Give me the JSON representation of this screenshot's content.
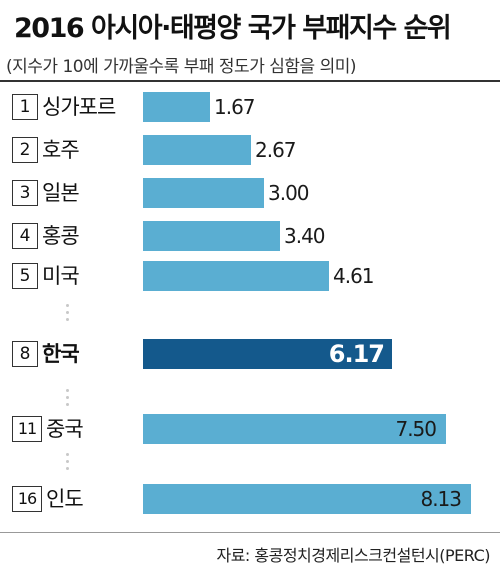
{
  "title": "2016 아시아·태평양 국가 부패지수 순위",
  "subtitle": "(지수가 10에 가까울수록 부패 정도가 심함을 의미)",
  "source": "자료: 홍콩정치경제리스크컨설턴시(PERC)",
  "colors": {
    "bar": "#5aaed2",
    "highlight": "#14598c"
  },
  "chart_data": {
    "type": "bar",
    "orientation": "horizontal",
    "xlim": [
      0,
      10
    ],
    "categories": [
      "1 싱가포르",
      "2 호주",
      "3 일본",
      "4 홍콩",
      "5 미국",
      "8 한국",
      "11 중국",
      "16 인도"
    ],
    "rows": [
      {
        "rank": "1",
        "name": "싱가포르",
        "value": 1.67,
        "label": "1.67"
      },
      {
        "rank": "2",
        "name": "호주",
        "value": 2.67,
        "label": "2.67"
      },
      {
        "rank": "3",
        "name": "일본",
        "value": 3.0,
        "label": "3.00"
      },
      {
        "rank": "4",
        "name": "홍콩",
        "value": 3.4,
        "label": "3.40"
      },
      {
        "rank": "5",
        "name": "미국",
        "value": 4.61,
        "label": "4.61"
      },
      {
        "rank": "8",
        "name": "한국",
        "value": 6.17,
        "label": "6.17",
        "highlight": true
      },
      {
        "rank": "11",
        "name": "중국",
        "value": 7.5,
        "label": "7.50"
      },
      {
        "rank": "16",
        "name": "인도",
        "value": 8.13,
        "label": "8.13"
      }
    ]
  }
}
